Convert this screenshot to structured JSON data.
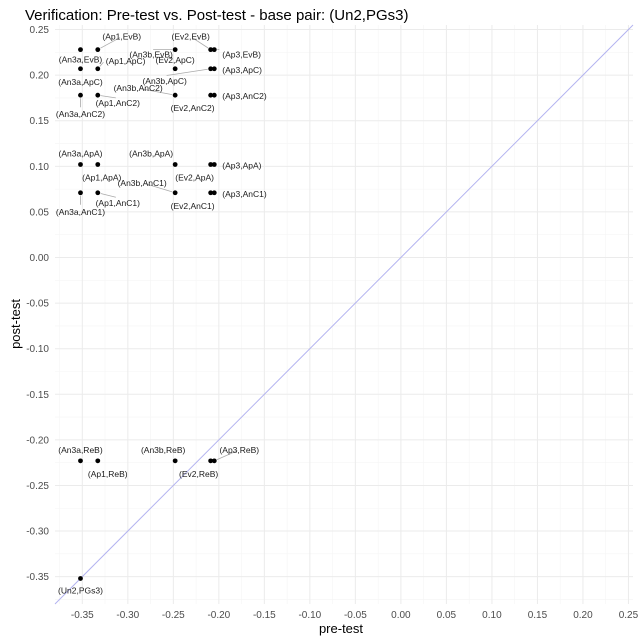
{
  "chart_data": {
    "type": "scatter",
    "title": "Verification: Pre-test vs. Post-test - base pair: (Un2,PGs3)",
    "xlabel": "pre-test",
    "ylabel": "post-test",
    "xlim": [
      -0.38,
      0.255
    ],
    "ylim": [
      -0.38,
      0.255
    ],
    "grid": true,
    "reference_line": "y = x",
    "x_ticks": [
      "-0.35",
      "-0.30",
      "-0.25",
      "-0.20",
      "-0.15",
      "-0.10",
      "-0.05",
      "0.00",
      "0.05",
      "0.10",
      "0.15",
      "0.20",
      "0.25"
    ],
    "y_ticks": [
      "-0.35",
      "-0.30",
      "-0.25",
      "-0.20",
      "-0.15",
      "-0.10",
      "-0.05",
      "0.00",
      "0.05",
      "0.10",
      "0.15",
      "0.20",
      "0.25"
    ],
    "points": [
      {
        "label": "(Ap1,EvB)",
        "x": -0.333,
        "y": 0.228
      },
      {
        "label": "(Ev2,EvB)",
        "x": -0.209,
        "y": 0.228
      },
      {
        "label": "(An3b,EvB)",
        "x": -0.248,
        "y": 0.228
      },
      {
        "label": "(Ap3,EvB)",
        "x": -0.205,
        "y": 0.228
      },
      {
        "label": "(An3a,EvB)",
        "x": -0.352,
        "y": 0.228
      },
      {
        "label": "(Ap1,ApC)",
        "x": -0.333,
        "y": 0.207
      },
      {
        "label": "(Ev2,ApC)",
        "x": -0.248,
        "y": 0.207
      },
      {
        "label": "(Ap3,ApC)",
        "x": -0.205,
        "y": 0.207
      },
      {
        "label": "(An3a,ApC)",
        "x": -0.352,
        "y": 0.207
      },
      {
        "label": "(An3b,ApC)",
        "x": -0.209,
        "y": 0.207
      },
      {
        "label": "(An3b,AnC2)",
        "x": -0.248,
        "y": 0.178
      },
      {
        "label": "(Ap3,AnC2)",
        "x": -0.205,
        "y": 0.178
      },
      {
        "label": "(Ap1,AnC2)",
        "x": -0.333,
        "y": 0.178
      },
      {
        "label": "(Ev2,AnC2)",
        "x": -0.209,
        "y": 0.178
      },
      {
        "label": "(An3a,AnC2)",
        "x": -0.352,
        "y": 0.178
      },
      {
        "label": "(An3a,ApA)",
        "x": -0.352,
        "y": 0.102
      },
      {
        "label": "(An3b,ApA)",
        "x": -0.248,
        "y": 0.102
      },
      {
        "label": "(Ap3,ApA)",
        "x": -0.205,
        "y": 0.102
      },
      {
        "label": "(Ap1,ApA)",
        "x": -0.333,
        "y": 0.102
      },
      {
        "label": "(Ev2,ApA)",
        "x": -0.209,
        "y": 0.102
      },
      {
        "label": "(An3b,AnC1)",
        "x": -0.248,
        "y": 0.071
      },
      {
        "label": "(Ap3,AnC1)",
        "x": -0.205,
        "y": 0.071
      },
      {
        "label": "(Ap1,AnC1)",
        "x": -0.333,
        "y": 0.071
      },
      {
        "label": "(An3a,AnC1)",
        "x": -0.352,
        "y": 0.071
      },
      {
        "label": "(Ev2,AnC1)",
        "x": -0.209,
        "y": 0.071
      },
      {
        "label": "(An3a,ReB)",
        "x": -0.352,
        "y": -0.223
      },
      {
        "label": "(An3b,ReB)",
        "x": -0.248,
        "y": -0.223
      },
      {
        "label": "(Ap3,ReB)",
        "x": -0.205,
        "y": -0.223
      },
      {
        "label": "(Ap1,ReB)",
        "x": -0.333,
        "y": -0.223
      },
      {
        "label": "(Ev2,ReB)",
        "x": -0.209,
        "y": -0.223
      },
      {
        "label": "(Un2,PGs3)",
        "x": -0.352,
        "y": -0.352
      }
    ]
  },
  "colors": {
    "background": "#ffffff",
    "grid_major": "#ebebeb",
    "grid_minor": "#f5f5f5",
    "reference_line": "#b3b3f0",
    "point": "#000000",
    "leader": "#aaaaaa",
    "tick_text": "#4d4d4d",
    "text": "#1a1a1a"
  }
}
